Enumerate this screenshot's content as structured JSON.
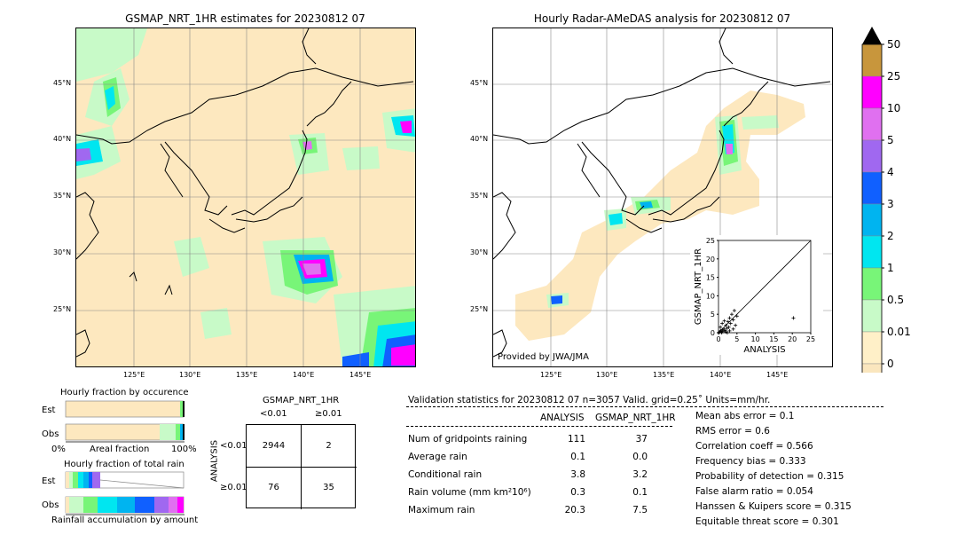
{
  "left_map": {
    "title": "GSMAP_NRT_1HR estimates for 20230812 07",
    "lat_labels": [
      "45°N",
      "40°N",
      "35°N",
      "30°N",
      "25°N"
    ],
    "lon_labels": [
      "125°E",
      "130°E",
      "135°E",
      "140°E",
      "145°E"
    ]
  },
  "right_map": {
    "title": "Hourly Radar-AMeDAS analysis for 20230812 07",
    "lat_labels": [
      "45°N",
      "40°N",
      "35°N",
      "30°N",
      "25°N"
    ],
    "lon_labels": [
      "125°E",
      "130°E",
      "135°E",
      "140°E",
      "145°E"
    ],
    "credit": "Provided by JWA/JMA"
  },
  "colorbar": {
    "labels": [
      "50",
      "25",
      "10",
      "5",
      "4",
      "3",
      "2",
      "1",
      "0.5",
      "0.01",
      "0"
    ],
    "colors": [
      "#c8963c",
      "#ff00ff",
      "#e070f0",
      "#a068f0",
      "#1060ff",
      "#00b4f0",
      "#00e6f0",
      "#78f578",
      "#c8fac8",
      "#fff0c8",
      "#fae6be"
    ]
  },
  "scatter": {
    "xlabel": "ANALYSIS",
    "ylabel": "GSMAP_NRT_1HR",
    "ticks": [
      "0",
      "5",
      "10",
      "15",
      "20",
      "25"
    ]
  },
  "occurrence": {
    "title": "Hourly fraction by occurence",
    "row1": "Est",
    "row2": "Obs",
    "axis_left": "0%",
    "axis_mid": "Areal fraction",
    "axis_right": "100%"
  },
  "total_rain": {
    "title": "Hourly fraction of total rain",
    "row1": "Est",
    "row2": "Obs",
    "axis_label": "Rainfall accumulation by amount"
  },
  "contingency": {
    "title": "GSMAP_NRT_1HR",
    "col1": "<0.01",
    "col2": "≥0.01",
    "row_axis": "ANALYSIS",
    "row1": "<0.01",
    "row2": "≥0.01",
    "cells": [
      "2944",
      "2",
      "76",
      "35"
    ]
  },
  "validation": {
    "header": "Validation statistics for 20230812 07  n=3057 Valid. grid=0.25˚ Units=mm/hr.",
    "col_analysis": "ANALYSIS",
    "col_gsmap": "GSMAP_NRT_1HR",
    "rows": [
      {
        "label": "Num of gridpoints raining",
        "a": "111",
        "g": "37"
      },
      {
        "label": "Average rain",
        "a": "0.1",
        "g": "0.0"
      },
      {
        "label": "Conditional rain",
        "a": "3.8",
        "g": "3.2"
      },
      {
        "label": "Rain volume (mm km²10⁶)",
        "a": "0.3",
        "g": "0.1"
      },
      {
        "label": "Maximum rain",
        "a": "20.3",
        "g": "7.5"
      }
    ],
    "scores": [
      "Mean abs error =    0.1",
      "RMS error =    0.6",
      "Correlation coeff =  0.566",
      "Frequency bias =  0.333",
      "Probability of detection =  0.315",
      "False alarm ratio =  0.054",
      "Hanssen & Kuipers score =  0.315",
      "Equitable threat score =  0.301"
    ]
  },
  "chart_data": {
    "type": "scatter",
    "title": "",
    "xlabel": "ANALYSIS",
    "ylabel": "GSMAP_NRT_1HR",
    "xlim": [
      0,
      25
    ],
    "ylim": [
      0,
      25
    ],
    "points": [
      [
        0.2,
        0.1
      ],
      [
        0.4,
        0.3
      ],
      [
        0.6,
        0.5
      ],
      [
        0.8,
        0.2
      ],
      [
        1.0,
        0.8
      ],
      [
        1.2,
        0.4
      ],
      [
        1.5,
        1.0
      ],
      [
        1.8,
        0.6
      ],
      [
        2.0,
        2.0
      ],
      [
        2.3,
        1.2
      ],
      [
        2.6,
        3.0
      ],
      [
        2.8,
        1.5
      ],
      [
        3.0,
        4.0
      ],
      [
        3.3,
        2.5
      ],
      [
        3.6,
        5.0
      ],
      [
        4.0,
        3.5
      ],
      [
        4.3,
        6.0
      ],
      [
        4.6,
        2.0
      ],
      [
        5.0,
        4.5
      ],
      [
        1.0,
        2.5
      ],
      [
        0.5,
        1.5
      ],
      [
        3.0,
        0.5
      ],
      [
        2.0,
        0.2
      ],
      [
        4.0,
        1.0
      ],
      [
        20.3,
        4.0
      ],
      [
        1.6,
        3.2
      ],
      [
        0.9,
        0.0
      ],
      [
        2.4,
        0.0
      ]
    ]
  }
}
